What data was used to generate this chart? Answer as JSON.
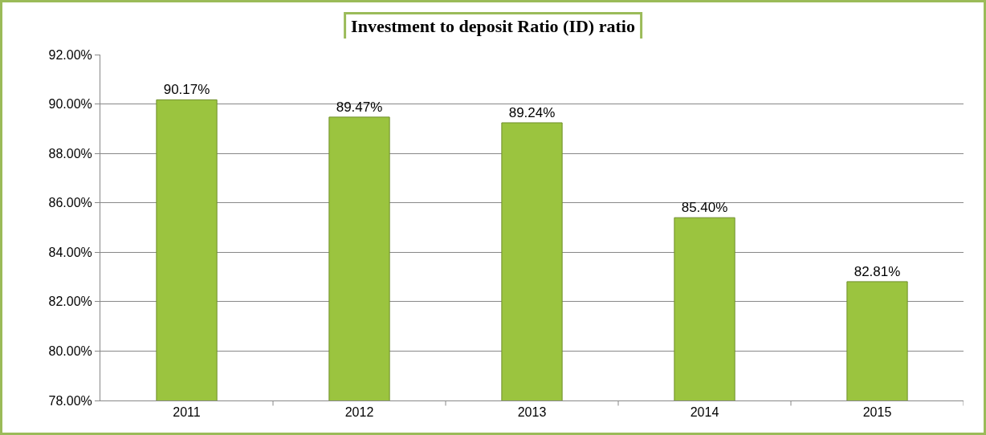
{
  "chart_data": {
    "type": "bar",
    "title": "Investment to deposit Ratio (ID) ratio",
    "categories": [
      "2011",
      "2012",
      "2013",
      "2014",
      "2015"
    ],
    "values": [
      90.17,
      89.47,
      89.24,
      85.4,
      82.81
    ],
    "value_labels": [
      "90.17%",
      "89.47%",
      "89.24%",
      "85.40%",
      "82.81%"
    ],
    "color": "#9bc43f",
    "ylim": [
      78,
      92
    ],
    "yticks": [
      {
        "value": 78,
        "label": "78.00%"
      },
      {
        "value": 80,
        "label": "80.00%"
      },
      {
        "value": 82,
        "label": "82.00%"
      },
      {
        "value": 84,
        "label": "84.00%"
      },
      {
        "value": 86,
        "label": "86.00%"
      },
      {
        "value": 88,
        "label": "88.00%"
      },
      {
        "value": 90,
        "label": "90.00%"
      },
      {
        "value": 92,
        "label": "92.00%"
      }
    ],
    "grid": "y",
    "legend": false
  }
}
